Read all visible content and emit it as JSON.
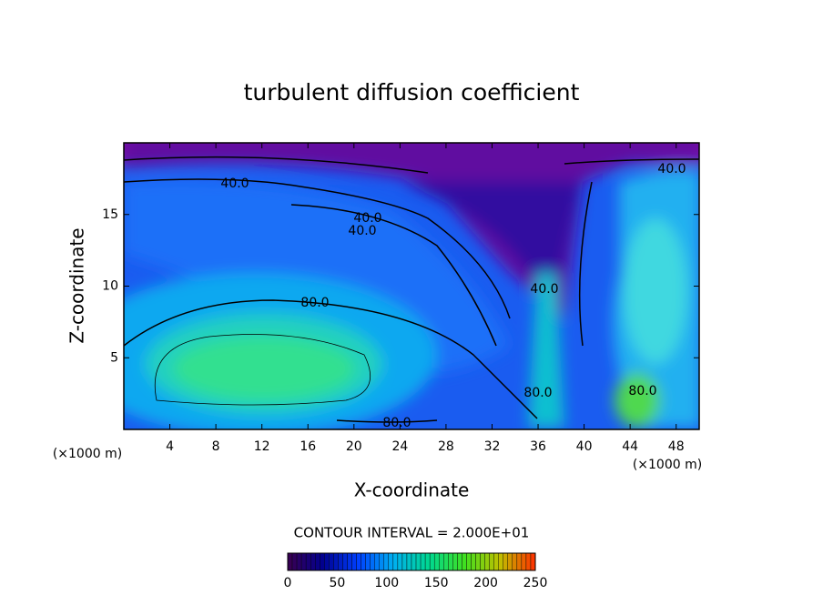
{
  "chart_data": {
    "type": "contour",
    "title": "turbulent diffusion coefficient",
    "xlabel": "X-coordinate",
    "ylabel": "Z-coordinate",
    "x_unit": "(×1000 m)",
    "x_unit_right": "(×1000 m)",
    "xlim": [
      0,
      50
    ],
    "ylim": [
      0,
      20
    ],
    "xticks": [
      4,
      8,
      12,
      16,
      20,
      24,
      28,
      32,
      36,
      40,
      44,
      48
    ],
    "yticks": [
      5,
      10,
      15
    ],
    "contour_interval": "CONTOUR INTERVAL = 2.000E+01",
    "contour_labels": [
      "40.0",
      "40.0",
      "40.0",
      "40.0",
      "80.0",
      "80.0",
      "80.0",
      "80.0",
      "40.0"
    ],
    "colorbar_lim": [
      0,
      250
    ],
    "colorbar_ticks": [
      0,
      50,
      100,
      150,
      200,
      250
    ],
    "colormap": [
      "#3a0050",
      "#000090",
      "#0040ff",
      "#00b0f0",
      "#00d890",
      "#40e020",
      "#c0c000",
      "#ff3000"
    ]
  }
}
